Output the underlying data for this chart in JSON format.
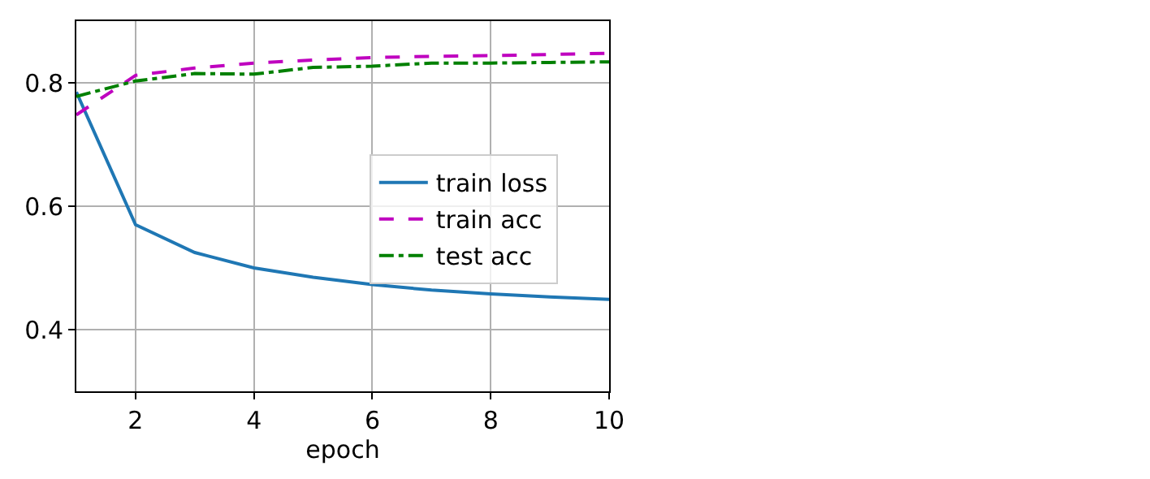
{
  "chart_data": {
    "type": "line",
    "xlabel": "epoch",
    "x": [
      1,
      2,
      3,
      4,
      5,
      6,
      7,
      8,
      9,
      10
    ],
    "series": [
      {
        "name": "train loss",
        "color": "#1f77b4",
        "line_style": "solid",
        "values": [
          0.785,
          0.57,
          0.525,
          0.5,
          0.485,
          0.473,
          0.464,
          0.458,
          0.453,
          0.449
        ]
      },
      {
        "name": "train acc",
        "color": "#bf00bf",
        "line_style": "dashed",
        "values": [
          0.748,
          0.812,
          0.824,
          0.832,
          0.837,
          0.841,
          0.843,
          0.844,
          0.846,
          0.848
        ]
      },
      {
        "name": "test acc",
        "color": "#008000",
        "line_style": "dashdot",
        "values": [
          0.778,
          0.803,
          0.815,
          0.814,
          0.825,
          0.827,
          0.832,
          0.832,
          0.833,
          0.834
        ]
      }
    ],
    "xlim": [
      1,
      10
    ],
    "xticks": [
      2,
      4,
      6,
      8,
      10
    ],
    "ylim": [
      0.3,
      0.9
    ],
    "yticks": [
      0.4,
      0.6,
      0.8
    ],
    "grid": true,
    "legend": "right",
    "marker": "none"
  }
}
